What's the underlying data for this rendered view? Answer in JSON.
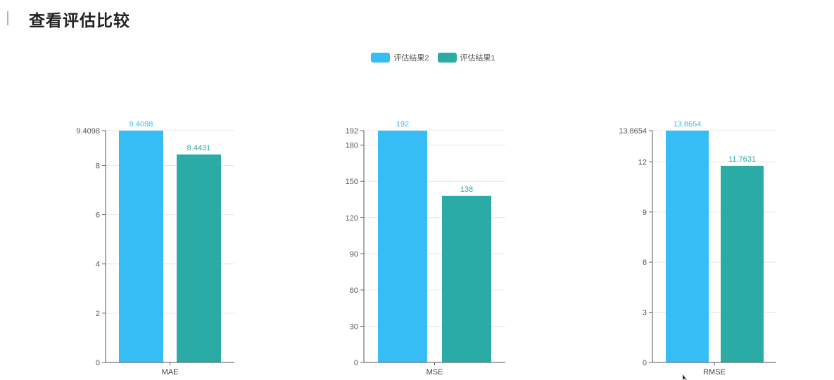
{
  "page": {
    "title": "查看评估比较"
  },
  "legend": [
    {
      "name": "评估结果2",
      "color": "#37bdf5"
    },
    {
      "name": "评估结果1",
      "color": "#2aaba5"
    }
  ],
  "chart_data": [
    {
      "type": "bar",
      "categories": [
        "MAE"
      ],
      "series": [
        {
          "name": "评估结果2",
          "values": [
            9.4098
          ]
        },
        {
          "name": "评估结果1",
          "values": [
            8.4431
          ]
        }
      ],
      "xlabel": "",
      "ylabel": "",
      "ylim": [
        0,
        9.4098
      ],
      "yticks": [
        "0",
        "2",
        "4",
        "6",
        "8",
        "9.4098"
      ],
      "ytick_values": [
        0,
        2,
        4,
        6,
        8,
        9.4098
      ],
      "data_labels": [
        "9.4098",
        "8.4431"
      ],
      "grid": true
    },
    {
      "type": "bar",
      "categories": [
        "MSE"
      ],
      "series": [
        {
          "name": "评估结果2",
          "values": [
            192
          ]
        },
        {
          "name": "评估结果1",
          "values": [
            138
          ]
        }
      ],
      "xlabel": "",
      "ylabel": "",
      "ylim": [
        0,
        192
      ],
      "yticks": [
        "0",
        "30",
        "60",
        "90",
        "120",
        "150",
        "180",
        "192"
      ],
      "ytick_values": [
        0,
        30,
        60,
        90,
        120,
        150,
        180,
        192
      ],
      "data_labels": [
        "192",
        "138"
      ],
      "grid": true
    },
    {
      "type": "bar",
      "categories": [
        "RMSE"
      ],
      "series": [
        {
          "name": "评估结果2",
          "values": [
            13.8654
          ]
        },
        {
          "name": "评估结果1",
          "values": [
            11.7631
          ]
        }
      ],
      "xlabel": "",
      "ylabel": "",
      "ylim": [
        0,
        13.8654
      ],
      "yticks": [
        "0",
        "3",
        "6",
        "9",
        "12",
        "13.8654"
      ],
      "ytick_values": [
        0,
        3,
        6,
        9,
        12,
        13.8654
      ],
      "data_labels": [
        "13.8654",
        "11.7631"
      ],
      "grid": true
    }
  ]
}
